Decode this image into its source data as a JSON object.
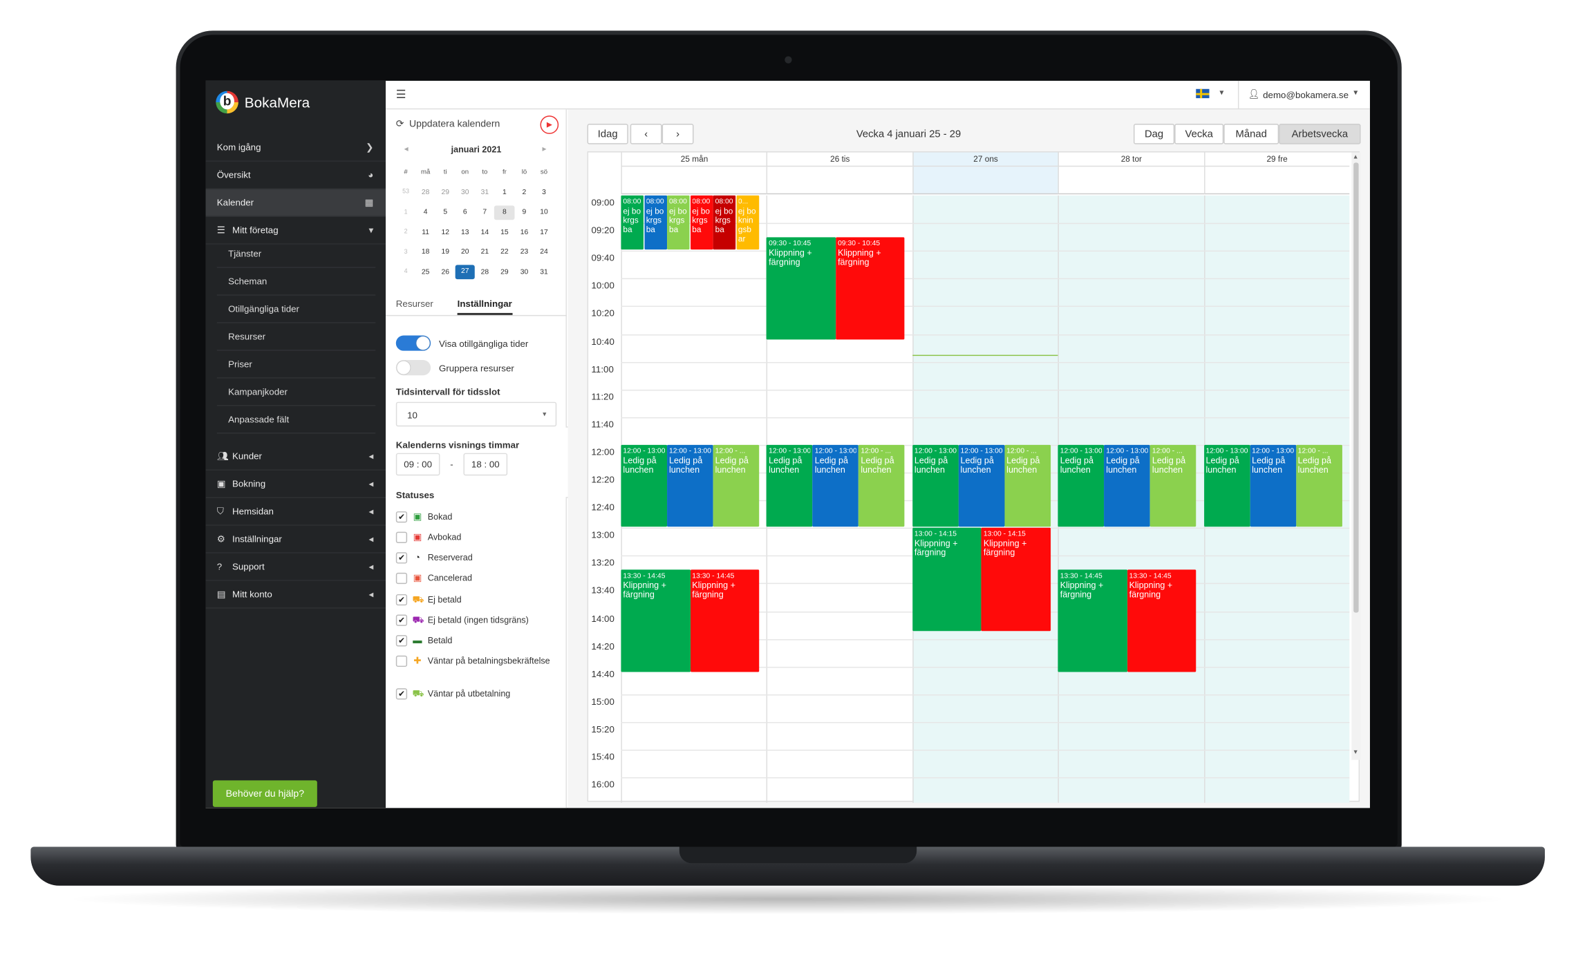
{
  "brand": {
    "name": "BokaMera"
  },
  "sidebar": {
    "items": [
      {
        "label": "Kom igång",
        "icon": "chevron-right-icon",
        "glyph": "❯"
      },
      {
        "label": "Översikt",
        "icon": "dashboard-icon",
        "glyph": "◕"
      },
      {
        "label": "Kalender",
        "icon": "calendar-icon",
        "glyph": "▦"
      },
      {
        "label": "Mitt företag",
        "icon": "list-icon",
        "glyph": "▾"
      }
    ],
    "sub_items": [
      "Tjänster",
      "Scheman",
      "Otillgängliga tider",
      "Resurser",
      "Priser",
      "Kampanjkoder",
      "Anpassade fält"
    ],
    "groups": [
      "Kunder",
      "Bokning",
      "Hemsidan",
      "Inställningar",
      "Support",
      "Mitt konto"
    ],
    "help_button": "Behöver du hjälp?"
  },
  "topbar": {
    "user": "demo@bokamera.se",
    "language_flag": "swedish-flag-icon"
  },
  "panel": {
    "update_label": "Uppdatera kalendern",
    "month_label": "januari 2021",
    "weekday_headers": [
      "#",
      "må",
      "ti",
      "on",
      "to",
      "fr",
      "lö",
      "sö"
    ],
    "weeks": [
      [
        "53",
        "28",
        "29",
        "30",
        "31",
        "1",
        "2",
        "3"
      ],
      [
        "1",
        "4",
        "5",
        "6",
        "7",
        "8",
        "9",
        "10"
      ],
      [
        "2",
        "11",
        "12",
        "13",
        "14",
        "15",
        "16",
        "17"
      ],
      [
        "3",
        "18",
        "19",
        "20",
        "21",
        "22",
        "23",
        "24"
      ],
      [
        "4",
        "25",
        "26",
        "27",
        "28",
        "29",
        "30",
        "31"
      ]
    ],
    "today": "27",
    "tabs": [
      "Resurser",
      "Inställningar"
    ],
    "toggle_show_unavailable": "Visa otillgängliga tider",
    "toggle_group_resources": "Gruppera resurser",
    "interval_label": "Tidsintervall för tidsslot",
    "interval_value": "10",
    "hours_label": "Kalenderns visnings timmar",
    "hours_from_h": "09",
    "hours_from_m": "00",
    "hours_to_h": "18",
    "hours_to_m": "00",
    "hours_dash": "-",
    "statuses_label": "Statuses",
    "statuses": [
      {
        "label": "Bokad",
        "checked": true,
        "color": "#2e9e3e",
        "glyph": "▣"
      },
      {
        "label": "Avbokad",
        "checked": false,
        "color": "#e53935",
        "glyph": "▣"
      },
      {
        "label": "Reserverad",
        "checked": true,
        "color": "#222222",
        "glyph": "◔"
      },
      {
        "label": "Cancelerad",
        "checked": false,
        "color": "#e8523a",
        "glyph": "▣"
      },
      {
        "label": "Ej betald",
        "checked": true,
        "color": "#f5a623",
        "glyph": "⛟"
      },
      {
        "label": "Ej betald (ingen tidsgräns)",
        "checked": true,
        "color": "#9c27b0",
        "glyph": "⛟"
      },
      {
        "label": "Betald",
        "checked": true,
        "color": "#2e7d32",
        "glyph": "▬"
      },
      {
        "label": "Väntar på betalningsbekräftelse",
        "checked": false,
        "color": "#f5a623",
        "glyph": "✚"
      },
      {
        "label": "Väntar på utbetalning",
        "checked": true,
        "color": "#8bc34a",
        "glyph": "⛟"
      }
    ]
  },
  "calendar": {
    "today_button": "Idag",
    "week_title": "Vecka 4 januari 25 - 29",
    "views": [
      "Dag",
      "Vecka",
      "Månad",
      "Arbetsvecka"
    ],
    "active_view": "Arbetsvecka",
    "days": [
      "25 mån",
      "26 tis",
      "27 ons",
      "28 tor",
      "29 fre"
    ],
    "times": [
      "09:00",
      "09:20",
      "09:40",
      "10:00",
      "10:20",
      "10:40",
      "11:00",
      "11:20",
      "11:40",
      "12:00",
      "12:20",
      "12:40",
      "13:00",
      "13:20",
      "13:40",
      "14:00",
      "14:20",
      "14:40",
      "15:00",
      "15:20",
      "15:40",
      "16:00"
    ],
    "events": [
      {
        "day": 0,
        "start": "08:00",
        "end": "09:40",
        "time_label": "08:00",
        "title": "ej bokrgsba",
        "color": "#00aa4f",
        "lane": 0,
        "lanes": 6
      },
      {
        "day": 0,
        "start": "08:00",
        "end": "09:40",
        "time_label": "08:00",
        "title": "ej bokrgsba",
        "color": "#0d6fc7",
        "lane": 1,
        "lanes": 6
      },
      {
        "day": 0,
        "start": "08:00",
        "end": "09:40",
        "time_label": "08:00",
        "title": "ej bokrgsba",
        "color": "#8bd14e",
        "lane": 2,
        "lanes": 6
      },
      {
        "day": 0,
        "start": "08:00",
        "end": "09:40",
        "time_label": "08:00",
        "title": "ej bokrgsba",
        "color": "#ff0a0a",
        "lane": 3,
        "lanes": 6
      },
      {
        "day": 0,
        "start": "08:00",
        "end": "09:40",
        "time_label": "08:00",
        "title": "ej bokrgsba",
        "color": "#c50000",
        "lane": 4,
        "lanes": 6
      },
      {
        "day": 0,
        "start": "08:00",
        "end": "09:40",
        "time_label": "0...",
        "title": "ej boknin gsb ar",
        "color": "#ffbb00",
        "lane": 5,
        "lanes": 6
      },
      {
        "day": 1,
        "start": "09:30",
        "end": "10:45",
        "time_label": "09:30 - 10:45",
        "title": "Klippning + färgning",
        "color": "#00aa4f",
        "lane": 0,
        "lanes": 2
      },
      {
        "day": 1,
        "start": "09:30",
        "end": "10:45",
        "time_label": "09:30 - 10:45",
        "title": "Klippning + färgning",
        "color": "#ff0a0a",
        "lane": 1,
        "lanes": 2
      },
      {
        "day": 0,
        "start": "12:00",
        "end": "13:00",
        "time_label": "12:00 - 13:00",
        "title": "Ledig på lunchen",
        "color": "#00aa4f",
        "lane": 0,
        "lanes": 3
      },
      {
        "day": 0,
        "start": "12:00",
        "end": "13:00",
        "time_label": "12:00 - 13:00",
        "title": "Ledig på lunchen",
        "color": "#0d6fc7",
        "lane": 1,
        "lanes": 3
      },
      {
        "day": 0,
        "start": "12:00",
        "end": "13:00",
        "time_label": "12:00 - ...",
        "title": "Ledig på lunchen",
        "color": "#8bd14e",
        "lane": 2,
        "lanes": 3
      },
      {
        "day": 1,
        "start": "12:00",
        "end": "13:00",
        "time_label": "12:00 - 13:00",
        "title": "Ledig på lunchen",
        "color": "#00aa4f",
        "lane": 0,
        "lanes": 3
      },
      {
        "day": 1,
        "start": "12:00",
        "end": "13:00",
        "time_label": "12:00 - 13:00",
        "title": "Ledig på lunchen",
        "color": "#0d6fc7",
        "lane": 1,
        "lanes": 3
      },
      {
        "day": 1,
        "start": "12:00",
        "end": "13:00",
        "time_label": "12:00 - ...",
        "title": "Ledig på lunchen",
        "color": "#8bd14e",
        "lane": 2,
        "lanes": 3
      },
      {
        "day": 2,
        "start": "12:00",
        "end": "13:00",
        "time_label": "12:00 - 13:00",
        "title": "Ledig på lunchen",
        "color": "#00aa4f",
        "lane": 0,
        "lanes": 3
      },
      {
        "day": 2,
        "start": "12:00",
        "end": "13:00",
        "time_label": "12:00 - 13:00",
        "title": "Ledig på lunchen",
        "color": "#0d6fc7",
        "lane": 1,
        "lanes": 3
      },
      {
        "day": 2,
        "start": "12:00",
        "end": "13:00",
        "time_label": "12:00 - ...",
        "title": "Ledig på lunchen",
        "color": "#8bd14e",
        "lane": 2,
        "lanes": 3
      },
      {
        "day": 3,
        "start": "12:00",
        "end": "13:00",
        "time_label": "12:00 - 13:00",
        "title": "Ledig på lunchen",
        "color": "#00aa4f",
        "lane": 0,
        "lanes": 3
      },
      {
        "day": 3,
        "start": "12:00",
        "end": "13:00",
        "time_label": "12:00 - 13:00",
        "title": "Ledig på lunchen",
        "color": "#0d6fc7",
        "lane": 1,
        "lanes": 3
      },
      {
        "day": 3,
        "start": "12:00",
        "end": "13:00",
        "time_label": "12:00 - ...",
        "title": "Ledig på lunchen",
        "color": "#8bd14e",
        "lane": 2,
        "lanes": 3
      },
      {
        "day": 4,
        "start": "12:00",
        "end": "13:00",
        "time_label": "12:00 - 13:00",
        "title": "Ledig på lunchen",
        "color": "#00aa4f",
        "lane": 0,
        "lanes": 3
      },
      {
        "day": 4,
        "start": "12:00",
        "end": "13:00",
        "time_label": "12:00 - 13:00",
        "title": "Ledig på lunchen",
        "color": "#0d6fc7",
        "lane": 1,
        "lanes": 3
      },
      {
        "day": 4,
        "start": "12:00",
        "end": "13:00",
        "time_label": "12:00 - ...",
        "title": "Ledig på lunchen",
        "color": "#8bd14e",
        "lane": 2,
        "lanes": 3
      },
      {
        "day": 2,
        "start": "13:00",
        "end": "14:15",
        "time_label": "13:00 - 14:15",
        "title": "Klippning + färgning",
        "color": "#00aa4f",
        "lane": 0,
        "lanes": 2
      },
      {
        "day": 2,
        "start": "13:00",
        "end": "14:15",
        "time_label": "13:00 - 14:15",
        "title": "Klippning + färgning",
        "color": "#ff0a0a",
        "lane": 1,
        "lanes": 2
      },
      {
        "day": 0,
        "start": "13:30",
        "end": "14:45",
        "time_label": "13:30 - 14:45",
        "title": "Klippning + färgning",
        "color": "#00aa4f",
        "lane": 0,
        "lanes": 2
      },
      {
        "day": 0,
        "start": "13:30",
        "end": "14:45",
        "time_label": "13:30 - 14:45",
        "title": "Klippning + färgning",
        "color": "#ff0a0a",
        "lane": 1,
        "lanes": 2
      },
      {
        "day": 3,
        "start": "13:30",
        "end": "14:45",
        "time_label": "13:30 - 14:45",
        "title": "Klippning + färgning",
        "color": "#00aa4f",
        "lane": 0,
        "lanes": 2
      },
      {
        "day": 3,
        "start": "13:30",
        "end": "14:45",
        "time_label": "13:30 - 14:45",
        "title": "Klippning + färgning",
        "color": "#ff0a0a",
        "lane": 1,
        "lanes": 2
      }
    ]
  }
}
